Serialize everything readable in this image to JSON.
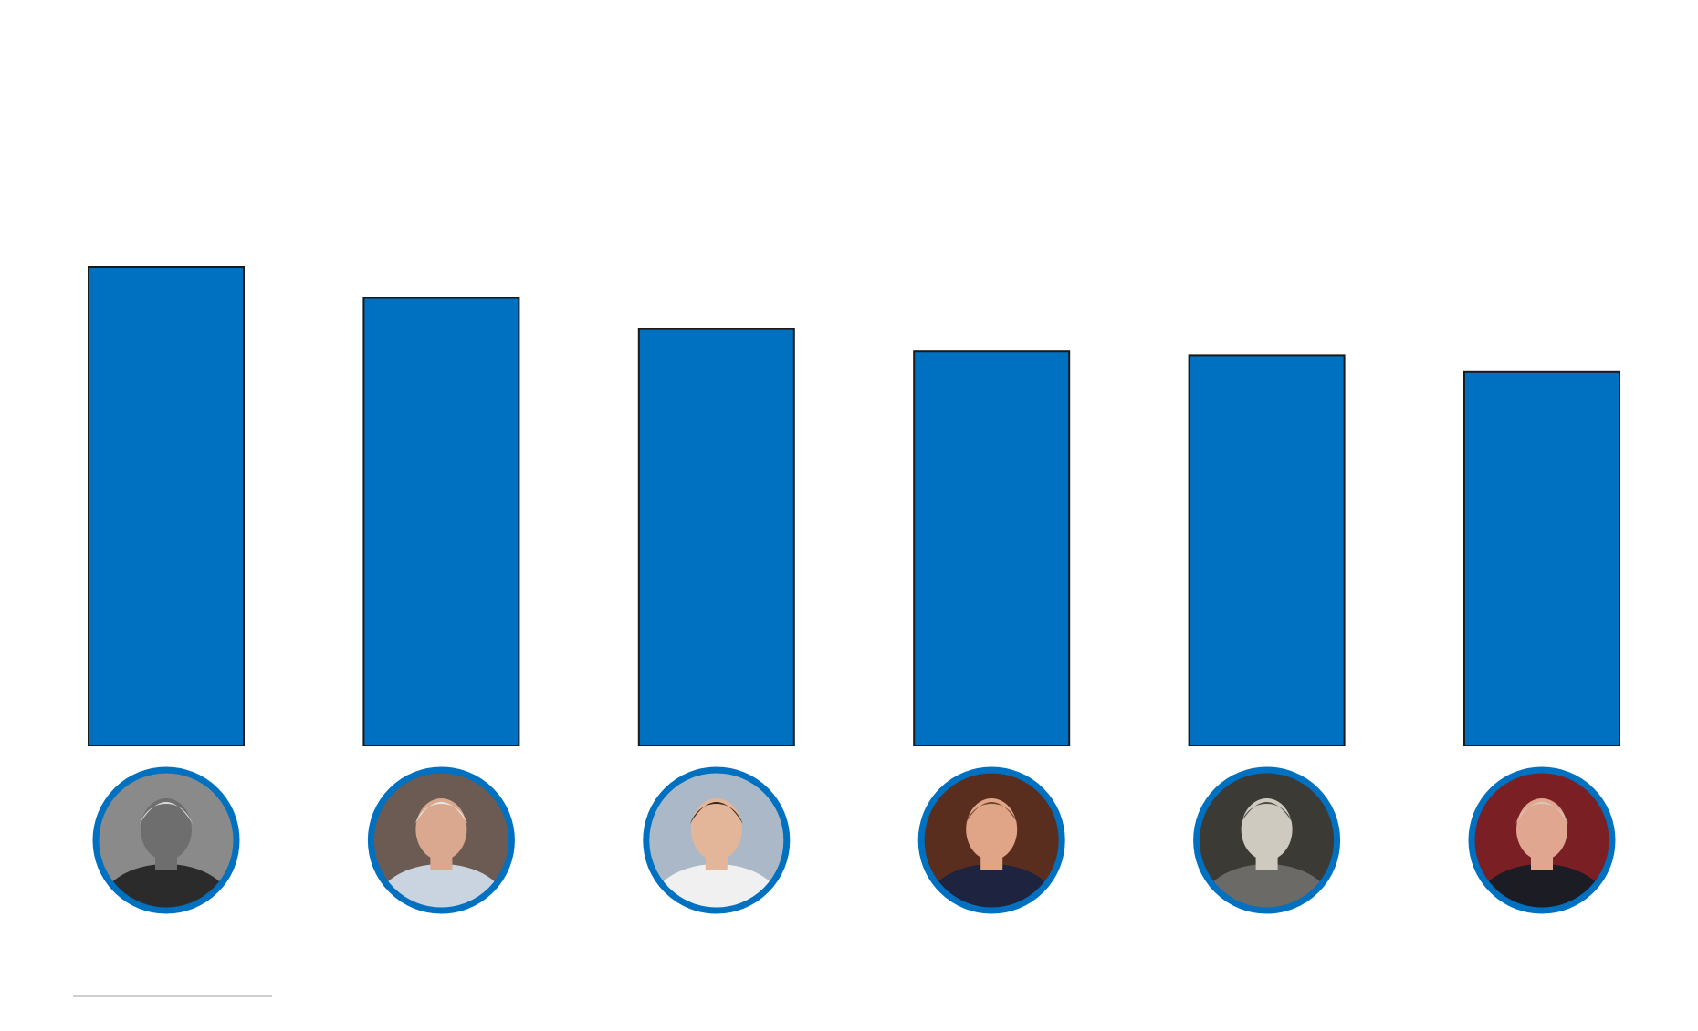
{
  "colors": {
    "bar_fill": "#0070C0",
    "bar_outline": "#1a1a1a",
    "photo_ring": "#0070C0",
    "footer_rule": "#cfcfcf",
    "background": "#ffffff"
  },
  "chart_data": {
    "type": "bar",
    "title": "",
    "xlabel": "",
    "ylabel": "",
    "categories": [
      "",
      "",
      "",
      "",
      "",
      ""
    ],
    "category_icons": [
      "manager-portrait-1-icon",
      "manager-portrait-2-icon",
      "manager-portrait-3-icon",
      "manager-portrait-4-icon",
      "manager-portrait-5-icon",
      "manager-portrait-6-icon"
    ],
    "values": [
      100,
      93.6,
      87.1,
      82.4,
      81.6,
      78.1
    ],
    "ylim": [
      0,
      100
    ],
    "grid": false,
    "legend": "none"
  }
}
